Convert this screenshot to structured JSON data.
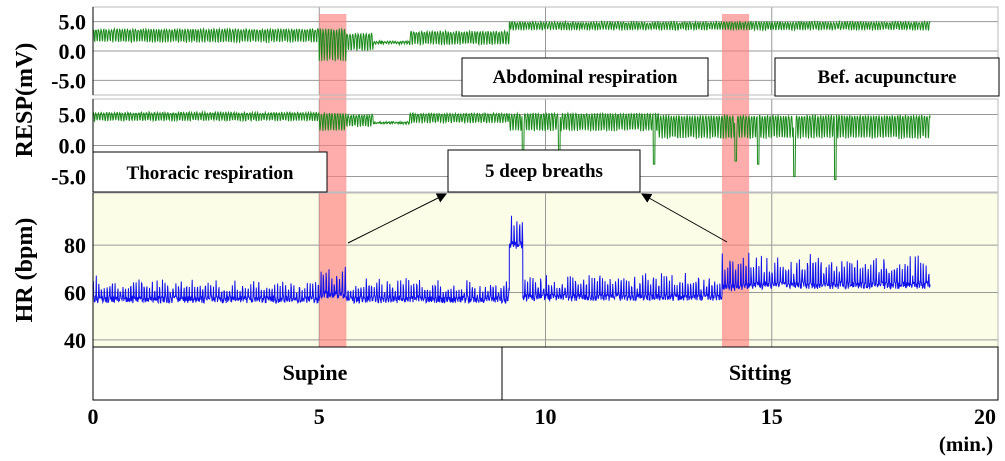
{
  "chart_data": {
    "type": "line",
    "xlabel": "(min.)",
    "xlim": [
      0,
      20
    ],
    "x_ticks": [
      "0",
      "5",
      "10",
      "15",
      "20"
    ],
    "x_tick_values": [
      0,
      5,
      10,
      15,
      20
    ],
    "resp_ylabel": "RESP(mV)",
    "hr_ylabel": "HR (bpm)",
    "panels": [
      {
        "name": "Abdominal respiration",
        "label": "Abdominal respiration",
        "ylim": [
          -7.5,
          7.5
        ],
        "y_ticks": [
          "5.0",
          "0.0",
          "-5.0"
        ],
        "y_tick_values": [
          5,
          0,
          -5
        ],
        "color": "#1a8a1a",
        "segments": [
          {
            "from": 0,
            "to": 5.0,
            "baseline": 3.2,
            "amplitude": 1.2
          },
          {
            "from": 5.0,
            "to": 5.6,
            "baseline": 2.5,
            "amplitude": 3.0
          },
          {
            "from": 5.6,
            "to": 6.2,
            "baseline": 2.3,
            "amplitude": 1.6
          },
          {
            "from": 6.2,
            "to": 7.0,
            "baseline": 1.5,
            "amplitude": 0.2
          },
          {
            "from": 7.0,
            "to": 9.2,
            "baseline": 2.8,
            "amplitude": 1.2
          },
          {
            "from": 9.2,
            "to": 18.5,
            "baseline": 4.6,
            "amplitude": 0.7
          }
        ]
      },
      {
        "name": "Thoracic respiration",
        "label": "Thoracic respiration",
        "ylim": [
          -7.5,
          7.5
        ],
        "y_ticks": [
          "5.0",
          "0.0",
          "-5.0"
        ],
        "y_tick_values": [
          5,
          0,
          -5
        ],
        "color": "#1a8a1a",
        "segments": [
          {
            "from": 0,
            "to": 5.0,
            "baseline": 5.0,
            "amplitude": 0.7
          },
          {
            "from": 5.0,
            "to": 5.6,
            "baseline": 4.5,
            "amplitude": 1.5
          },
          {
            "from": 5.6,
            "to": 6.2,
            "baseline": 4.5,
            "amplitude": 1.0
          },
          {
            "from": 6.2,
            "to": 7.0,
            "baseline": 3.7,
            "amplitude": 0.1
          },
          {
            "from": 7.0,
            "to": 9.2,
            "baseline": 4.8,
            "amplitude": 0.8
          },
          {
            "from": 9.2,
            "to": 12.5,
            "baseline": 4.5,
            "amplitude": 1.5
          },
          {
            "from": 12.5,
            "to": 18.5,
            "baseline": 4.0,
            "amplitude": 2.0
          }
        ],
        "dips": [
          [
            9.5,
            -1.5
          ],
          [
            10.3,
            -1.0
          ],
          [
            12.4,
            -3.0
          ],
          [
            14.2,
            -2.5
          ],
          [
            14.7,
            -3.0
          ],
          [
            15.5,
            -5.0
          ],
          [
            16.4,
            -5.5
          ]
        ]
      },
      {
        "name": "HR",
        "ylim": [
          37,
          102
        ],
        "y_ticks": [
          "80",
          "60",
          "40"
        ],
        "y_tick_values": [
          80,
          60,
          40
        ],
        "color": "#1010ee",
        "segments": [
          {
            "from": 0,
            "to": 5.0,
            "baseline": 57,
            "amplitude": 6
          },
          {
            "from": 5.0,
            "to": 5.6,
            "baseline": 59,
            "amplitude": 10
          },
          {
            "from": 5.6,
            "to": 9.2,
            "baseline": 57,
            "amplitude": 6
          },
          {
            "from": 9.2,
            "to": 9.5,
            "baseline": 80,
            "amplitude": 8
          },
          {
            "from": 9.5,
            "to": 13.9,
            "baseline": 58,
            "amplitude": 7
          },
          {
            "from": 13.9,
            "to": 14.5,
            "baseline": 62,
            "amplitude": 12
          },
          {
            "from": 14.5,
            "to": 18.5,
            "baseline": 63,
            "amplitude": 9
          }
        ]
      }
    ],
    "highlights": [
      [
        5.0,
        5.6
      ],
      [
        13.9,
        14.5
      ]
    ],
    "highlight_color": "#ff8080",
    "annotations": {
      "deep_breaths": "5 deep breaths",
      "before": "Bef. acupuncture"
    },
    "phases": [
      {
        "label": "Supine",
        "from": 0,
        "to": 9.2
      },
      {
        "label": "Sitting",
        "from": 9.2,
        "to": 20
      }
    ]
  }
}
